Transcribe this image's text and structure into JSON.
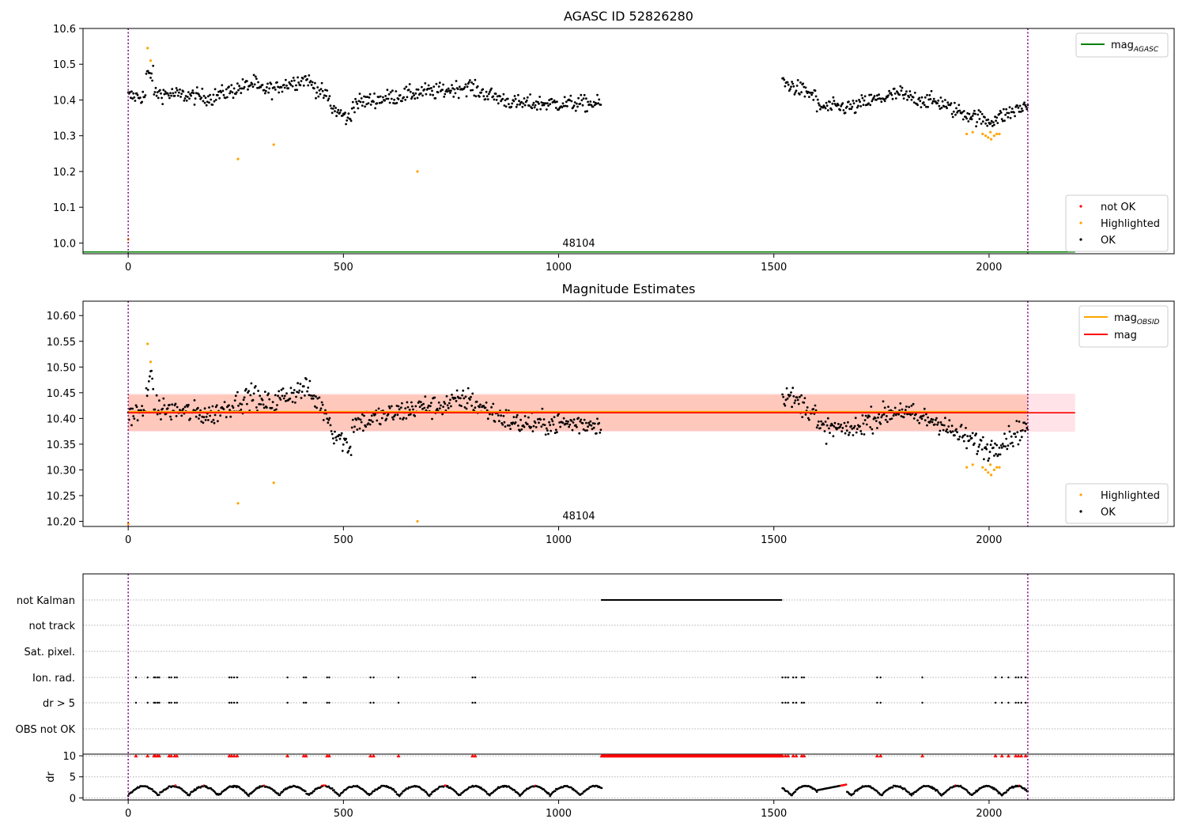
{
  "chart_data": [
    {
      "type": "scatter",
      "title": "AGASC ID 52826280",
      "xlim": [
        -105,
        2430
      ],
      "ylim": [
        9.97,
        10.6
      ],
      "xticks": [
        0,
        500,
        1000,
        1500,
        2000
      ],
      "yticks": [
        10.0,
        10.1,
        10.2,
        10.3,
        10.4,
        10.5,
        10.6
      ],
      "obsid_label": "48104",
      "vlines": [
        0,
        2090
      ],
      "mag_agasc": 9.975,
      "legend_lines": [
        {
          "name": "mag",
          "sub": "AGASC",
          "color": "#008000"
        }
      ],
      "legend_points": [
        {
          "name": "not OK",
          "color": "#ff0000"
        },
        {
          "name": "Highlighted",
          "color": "#ffa500"
        },
        {
          "name": "OK",
          "color": "#000000"
        }
      ],
      "highlighted": [
        [
          0,
          10.01
        ],
        [
          45,
          10.545
        ],
        [
          52,
          10.51
        ],
        [
          255,
          10.235
        ],
        [
          338,
          10.275
        ],
        [
          672,
          10.2
        ],
        [
          1948,
          10.305
        ],
        [
          1962,
          10.31
        ],
        [
          1985,
          10.305
        ],
        [
          1992,
          10.3
        ],
        [
          1998,
          10.295
        ],
        [
          2005,
          10.29
        ],
        [
          2012,
          10.3
        ],
        [
          2018,
          10.305
        ],
        [
          2024,
          10.305
        ],
        [
          2003,
          10.31
        ]
      ],
      "ok_segments": [
        [
          0,
          1100
        ],
        [
          1520,
          2090
        ]
      ]
    },
    {
      "type": "scatter",
      "title": "Magnitude Estimates",
      "xlim": [
        -105,
        2430
      ],
      "ylim": [
        10.19,
        10.628
      ],
      "xticks": [
        0,
        500,
        1000,
        1500,
        2000
      ],
      "yticks": [
        10.2,
        10.25,
        10.3,
        10.35,
        10.4,
        10.45,
        10.5,
        10.55,
        10.6
      ],
      "obsid_label": "48104",
      "vlines": [
        0,
        2090
      ],
      "mag": 10.411,
      "mag_obsid": 10.413,
      "band_outer": [
        10.374,
        10.448
      ],
      "band_inner": [
        10.376,
        10.446
      ],
      "legend_lines": [
        {
          "name": "mag",
          "sub": "OBSID",
          "color": "#ffa500"
        },
        {
          "name": "mag",
          "sub": "",
          "color": "#ff0000"
        }
      ],
      "legend_points": [
        {
          "name": "Highlighted",
          "color": "#ffa500"
        },
        {
          "name": "OK",
          "color": "#000000"
        }
      ],
      "highlighted": [
        [
          0,
          10.195
        ],
        [
          45,
          10.545
        ],
        [
          52,
          10.51
        ],
        [
          255,
          10.235
        ],
        [
          338,
          10.275
        ],
        [
          672,
          10.2
        ],
        [
          1948,
          10.305
        ],
        [
          1962,
          10.31
        ],
        [
          1985,
          10.305
        ],
        [
          1992,
          10.3
        ],
        [
          1998,
          10.295
        ],
        [
          2005,
          10.29
        ],
        [
          2012,
          10.3
        ],
        [
          2018,
          10.305
        ],
        [
          2024,
          10.305
        ],
        [
          2003,
          10.31
        ]
      ],
      "ok_segments": [
        [
          0,
          1100
        ],
        [
          1520,
          2090
        ]
      ]
    },
    {
      "type": "scatter",
      "title": "",
      "xlim": [
        -105,
        2430
      ],
      "xticks": [
        0,
        500,
        1000,
        1500,
        2000
      ],
      "flag_labels": [
        "not Kalman",
        "not track",
        "Sat. pixel.",
        "Ion. rad.",
        "dr > 5",
        "OBS not OK"
      ],
      "not_kalman_range": [
        1100,
        1518
      ],
      "ion_rad_x": [
        18,
        45,
        60,
        63,
        68,
        72,
        95,
        100,
        108,
        113,
        235,
        240,
        246,
        253,
        370,
        408,
        413,
        462,
        467,
        563,
        570,
        628,
        800,
        806,
        1520,
        1527,
        1533,
        1545,
        1552,
        1565,
        1570,
        1740,
        1748,
        1845,
        2015,
        2030,
        2045,
        2062,
        2068,
        2075,
        2085
      ],
      "dr_ylabel": "dr",
      "dr_yticks": [
        0,
        5,
        10
      ],
      "dr_ylim": [
        -0.5,
        10.4
      ]
    }
  ]
}
